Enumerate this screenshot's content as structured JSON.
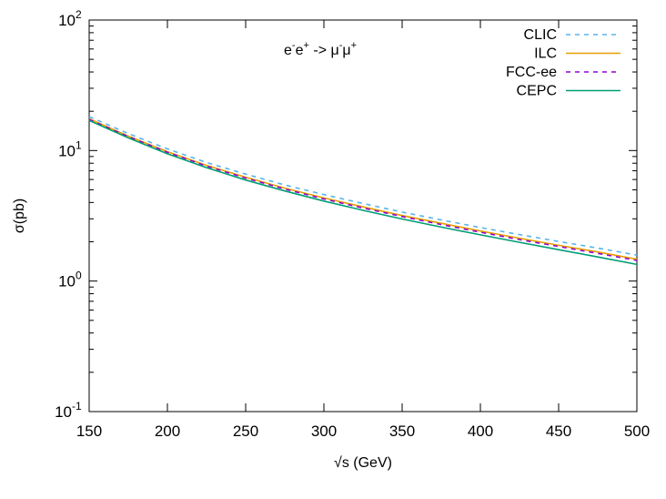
{
  "chart_data": {
    "type": "line",
    "title": "",
    "annotation": {
      "parts": [
        "e",
        "-",
        "e",
        "+",
        " -> ",
        "μ",
        "-",
        "μ",
        "+"
      ]
    },
    "xlabel": "√s (GeV)",
    "ylabel": "σ(pb)",
    "xlim": [
      150,
      500
    ],
    "ylim": [
      0.1,
      100
    ],
    "yscale": "log",
    "grid": false,
    "legend_position": "top-right",
    "x_ticks": [
      {
        "value": 150,
        "label": "150"
      },
      {
        "value": 200,
        "label": "200"
      },
      {
        "value": 250,
        "label": "250"
      },
      {
        "value": 300,
        "label": "300"
      },
      {
        "value": 350,
        "label": "350"
      },
      {
        "value": 400,
        "label": "400"
      },
      {
        "value": 450,
        "label": "450"
      },
      {
        "value": 500,
        "label": "500"
      }
    ],
    "y_ticks": [
      {
        "value": 0.1,
        "base": "10",
        "exp": "-1"
      },
      {
        "value": 1,
        "base": "10",
        "exp": "0"
      },
      {
        "value": 10,
        "base": "10",
        "exp": "1"
      },
      {
        "value": 100,
        "base": "10",
        "exp": "2"
      }
    ],
    "x": [
      150,
      175,
      200,
      225,
      250,
      275,
      300,
      325,
      350,
      375,
      400,
      425,
      450,
      475,
      500
    ],
    "series": [
      {
        "name": "CLIC",
        "color": "#56b4e9",
        "dash": "dashed",
        "values": [
          18.2,
          13.5,
          10.3,
          8.1,
          6.6,
          5.45,
          4.6,
          3.93,
          3.38,
          2.94,
          2.57,
          2.27,
          2.01,
          1.79,
          1.58
        ]
      },
      {
        "name": "ILC",
        "color": "#e69f00",
        "dash": "solid",
        "values": [
          17.5,
          12.9,
          9.8,
          7.7,
          6.25,
          5.15,
          4.33,
          3.7,
          3.18,
          2.77,
          2.42,
          2.13,
          1.88,
          1.67,
          1.47
        ]
      },
      {
        "name": "FCC-ee",
        "color": "#9400d3",
        "dash": "dashed",
        "values": [
          17.3,
          12.8,
          9.7,
          7.6,
          6.15,
          5.07,
          4.26,
          3.63,
          3.12,
          2.71,
          2.37,
          2.08,
          1.84,
          1.63,
          1.44
        ]
      },
      {
        "name": "CEPC",
        "color": "#009e73",
        "dash": "solid",
        "values": [
          17.0,
          12.5,
          9.45,
          7.4,
          5.95,
          4.9,
          4.1,
          3.48,
          2.99,
          2.59,
          2.26,
          1.98,
          1.74,
          1.53,
          1.34
        ]
      }
    ]
  }
}
